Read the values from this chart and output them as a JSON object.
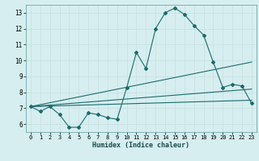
{
  "xlabel": "Humidex (Indice chaleur)",
  "bg_color": "#d6eef0",
  "grid_color": "#c8dfe2",
  "line_color": "#1a6b6b",
  "xlim": [
    -0.5,
    23.5
  ],
  "ylim": [
    5.5,
    13.5
  ],
  "yticks": [
    6,
    7,
    8,
    9,
    10,
    11,
    12,
    13
  ],
  "xticks": [
    0,
    1,
    2,
    3,
    4,
    5,
    6,
    7,
    8,
    9,
    10,
    11,
    12,
    13,
    14,
    15,
    16,
    17,
    18,
    19,
    20,
    21,
    22,
    23
  ],
  "line1_x": [
    0,
    1,
    2,
    3,
    4,
    5,
    6,
    7,
    8,
    9,
    10,
    11,
    12,
    13,
    14,
    15,
    16,
    17,
    18,
    19,
    20,
    21,
    22,
    23
  ],
  "line1_y": [
    7.1,
    6.8,
    7.1,
    6.6,
    5.8,
    5.8,
    6.7,
    6.6,
    6.4,
    6.3,
    8.3,
    10.5,
    9.5,
    12.0,
    13.0,
    13.3,
    12.9,
    12.2,
    11.6,
    9.9,
    8.3,
    8.5,
    8.4,
    7.3
  ],
  "line2_x": [
    0,
    23
  ],
  "line2_y": [
    7.1,
    9.9
  ],
  "line3_x": [
    0,
    23
  ],
  "line3_y": [
    7.1,
    7.5
  ],
  "line4_x": [
    0,
    23
  ],
  "line4_y": [
    7.1,
    8.2
  ]
}
